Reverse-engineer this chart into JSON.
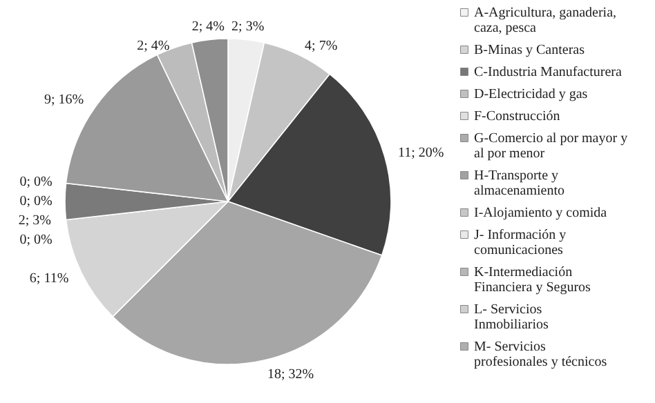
{
  "chart_data": {
    "type": "pie",
    "categories": [
      "A-Agricultura, ganaderia, caza, pesca",
      "B-Minas y Canteras",
      "C-Industria Manufacturera",
      "D-Electricidad y gas",
      "F-Construcción",
      "G-Comercio al por mayor y al por menor",
      "H-Transporte y almacenamiento",
      "I-Alojamiento y comida",
      "J- Información y comunicaciones",
      "K-Intermediación Financiera y Seguros",
      "L- Servicios Inmobiliarios",
      "M- Servicios profesionales y técnicos"
    ],
    "values": [
      2,
      4,
      11,
      18,
      6,
      0,
      2,
      0,
      0,
      9,
      2,
      2
    ],
    "value_labels": [
      "2; 3%",
      "4; 7%",
      "11; 20%",
      "18; 32%",
      "6; 11%",
      "0; 0%",
      "2; 3%",
      "0; 0%",
      "0; 0%",
      "9; 16%",
      "2; 4%",
      "2; 4%"
    ],
    "colors": [
      "#eeeeee",
      "#c4c4c4",
      "#404040",
      "#a6a6a6",
      "#d4d4d4",
      "#8a8a8a",
      "#7a7a7a",
      "#b0b0b0",
      "#e0e0e0",
      "#9a9a9a",
      "#bcbcbc",
      "#8e8e8e"
    ],
    "legend": "right"
  }
}
